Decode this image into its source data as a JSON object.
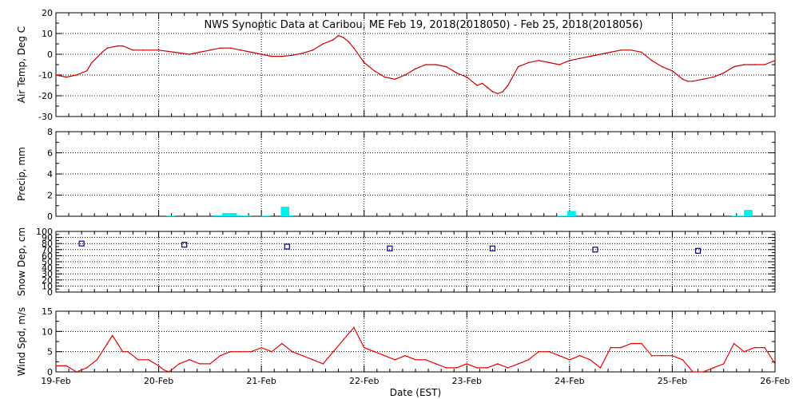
{
  "title": "NWS Synoptic Data at Caribou, ME   Feb 19, 2018(2018050) - Feb 25, 2018(2018056)",
  "xlabel": "Date (EST)",
  "x_ticks": [
    "19-Feb",
    "20-Feb",
    "21-Feb",
    "22-Feb",
    "23-Feb",
    "24-Feb",
    "25-Feb",
    "26-Feb"
  ],
  "colors": {
    "temp": "#cc0000",
    "precip": "#00f0f0",
    "snow": "#00008b",
    "wind": "#ee0000",
    "axis": "#000000"
  },
  "chart_data": [
    {
      "type": "line",
      "ylabel": "Air Temp, Deg C",
      "ylim": [
        -30,
        20
      ],
      "yticks": [
        20,
        10,
        0,
        -10,
        -20,
        -30
      ],
      "grid": true,
      "x_unit": "days since 19-Feb 00:00 EST",
      "x": [
        0,
        0.1,
        0.2,
        0.3,
        0.35,
        0.45,
        0.5,
        0.6,
        0.65,
        0.75,
        0.85,
        1.0,
        1.15,
        1.3,
        1.4,
        1.5,
        1.6,
        1.7,
        1.8,
        1.9,
        2.0,
        2.1,
        2.2,
        2.3,
        2.4,
        2.5,
        2.6,
        2.7,
        2.75,
        2.8,
        2.85,
        2.9,
        3.0,
        3.1,
        3.2,
        3.3,
        3.4,
        3.5,
        3.6,
        3.7,
        3.8,
        3.9,
        4.0,
        4.05,
        4.1,
        4.15,
        4.2,
        4.25,
        4.3,
        4.35,
        4.4,
        4.5,
        4.6,
        4.7,
        4.8,
        4.9,
        5.0,
        5.1,
        5.2,
        5.3,
        5.4,
        5.5,
        5.6,
        5.7,
        5.8,
        5.9,
        6.0,
        6.05,
        6.1,
        6.15,
        6.2,
        6.3,
        6.4,
        6.5,
        6.6,
        6.7,
        6.8,
        6.9,
        7.0
      ],
      "values": [
        -10,
        -11,
        -10,
        -8,
        -4,
        1,
        3,
        4,
        4,
        2,
        2,
        2,
        1,
        0,
        1,
        2,
        3,
        3,
        2,
        1,
        0,
        -1,
        -1,
        -0.5,
        0.5,
        2,
        5,
        7,
        9,
        8,
        6,
        3,
        -4,
        -8,
        -11,
        -12,
        -10,
        -7,
        -5,
        -5,
        -6,
        -9,
        -11,
        -13,
        -15,
        -14,
        -16,
        -18,
        -19,
        -18,
        -15,
        -6,
        -4,
        -3,
        -4,
        -5,
        -3,
        -2,
        -1,
        0,
        1,
        2,
        2,
        1,
        -3,
        -6,
        -8,
        -10,
        -12,
        -13,
        -13,
        -12,
        -11,
        -9,
        -6,
        -5,
        -5,
        -5,
        -3
      ]
    },
    {
      "type": "bar",
      "ylabel": "Precip, mm",
      "ylim": [
        0,
        8
      ],
      "yticks": [
        0,
        2,
        4,
        6,
        8
      ],
      "grid": true,
      "x_unit": "days since 19-Feb 00:00 EST",
      "x": [
        1.12,
        1.58,
        1.66,
        1.72,
        1.78,
        1.86,
        2.04,
        2.23,
        2.27,
        4.92,
        4.98,
        5.02,
        6.62,
        6.69,
        6.74
      ],
      "values": [
        0.05,
        0.1,
        0.3,
        0.3,
        0.1,
        0.05,
        0.05,
        0.9,
        0.1,
        0.05,
        0.05,
        0.5,
        0.05,
        0.05,
        0.6
      ]
    },
    {
      "type": "scatter",
      "ylabel": "Snow Dep, cm",
      "ylim": [
        0,
        100
      ],
      "yticks": [
        0,
        10,
        20,
        30,
        40,
        50,
        60,
        70,
        80,
        90,
        100
      ],
      "grid": true,
      "x_unit": "days since 19-Feb 00:00 EST",
      "x": [
        0.25,
        1.25,
        2.25,
        3.25,
        4.25,
        5.25,
        6.25
      ],
      "values": [
        80,
        78,
        75,
        72,
        72,
        70,
        68
      ]
    },
    {
      "type": "line",
      "ylabel": "Wind Spd, m/s",
      "ylim": [
        0,
        15
      ],
      "yticks": [
        0,
        5,
        10,
        15
      ],
      "grid": true,
      "x_unit": "days since 19-Feb 00:00 EST",
      "x": [
        0,
        0.1,
        0.2,
        0.3,
        0.4,
        0.5,
        0.55,
        0.6,
        0.65,
        0.7,
        0.8,
        0.9,
        1.0,
        1.05,
        1.1,
        1.2,
        1.3,
        1.4,
        1.5,
        1.6,
        1.7,
        1.8,
        1.9,
        2.0,
        2.1,
        2.2,
        2.3,
        2.4,
        2.5,
        2.6,
        2.7,
        2.8,
        2.9,
        3.0,
        3.1,
        3.2,
        3.3,
        3.4,
        3.5,
        3.6,
        3.7,
        3.8,
        3.9,
        4.0,
        4.1,
        4.2,
        4.3,
        4.4,
        4.5,
        4.6,
        4.7,
        4.8,
        4.9,
        5.0,
        5.1,
        5.2,
        5.3,
        5.4,
        5.5,
        5.6,
        5.7,
        5.8,
        5.9,
        6.0,
        6.1,
        6.2,
        6.3,
        6.4,
        6.5,
        6.6,
        6.7,
        6.8,
        6.9,
        7.0
      ],
      "values": [
        1.5,
        1.5,
        0,
        1,
        3,
        7,
        9,
        7,
        5,
        5,
        3,
        3,
        1.5,
        0.5,
        0,
        2,
        3,
        2,
        2,
        4,
        5,
        5,
        5,
        6,
        5,
        7,
        5,
        4,
        3,
        2,
        5,
        8,
        11,
        6,
        5,
        4,
        3,
        4,
        3,
        3,
        2,
        1,
        1,
        2,
        1,
        1,
        2,
        1,
        2,
        3,
        5,
        5,
        4,
        3,
        4,
        3,
        1,
        6,
        6,
        7,
        7,
        4,
        4,
        4,
        3,
        0,
        0,
        1,
        2,
        7,
        5,
        6,
        6,
        2
      ]
    }
  ]
}
